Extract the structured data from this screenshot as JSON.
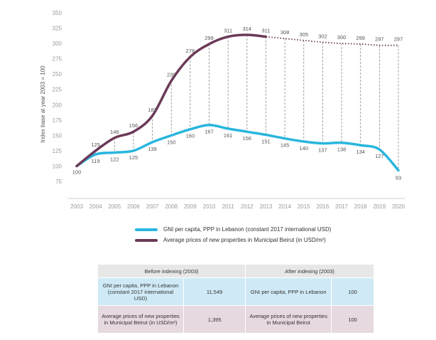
{
  "chart_data": {
    "type": "line",
    "title": "",
    "xlabel": "",
    "ylabel": "Index base at year 2003 = 100",
    "ylim": [
      75,
      350
    ],
    "yticks": [
      75,
      100,
      125,
      150,
      175,
      200,
      225,
      250,
      275,
      300,
      325,
      350
    ],
    "categories": [
      "2003",
      "2004",
      "2005",
      "2006",
      "2007",
      "2008",
      "2009",
      "2010",
      "2011",
      "2012",
      "2013",
      "2014",
      "2015",
      "2016",
      "2017",
      "2018",
      "2019",
      "2020"
    ],
    "series": [
      {
        "name": "GNI per capita, PPP in Lebanon (constant 2017 international USD)",
        "color": "#29b6de",
        "values": [
          100,
          119,
          122,
          125,
          139,
          150,
          160,
          167,
          161,
          156,
          151,
          145,
          140,
          137,
          138,
          134,
          127,
          93
        ]
      },
      {
        "name": "Average prices of new properties in Municipal Beirut (in USD/m²)",
        "color": "#6b3a58",
        "dashed_from_index": 10,
        "values": [
          100,
          125,
          146,
          156,
          182,
          239,
          278,
          299,
          311,
          314,
          311,
          308,
          305,
          302,
          300,
          299,
          297,
          297
        ]
      }
    ]
  },
  "legend": {
    "gni": "GNI per capita, PPP in Lebanon (constant 2017 international USD)",
    "prop": "Average prices of new properties in Municipal Beirut (in USD/m²)"
  },
  "table": {
    "header_before": "Before indexing (2003)",
    "header_after": "After indexing (2003)",
    "row_gni": {
      "label_before": "GNI per capita, PPP in Lebanon (constant 2017 international USD)",
      "value_before": "11,549",
      "label_after": "GNI per capita, PPP in Lebanon",
      "value_after": "100"
    },
    "row_prop": {
      "label_before": "Average prices of new properties in Municipal Beirut (in USD/m²)",
      "value_before": "1,395",
      "label_after": "Average prices of new properties in Municipal Beirut",
      "value_after": "100"
    }
  }
}
